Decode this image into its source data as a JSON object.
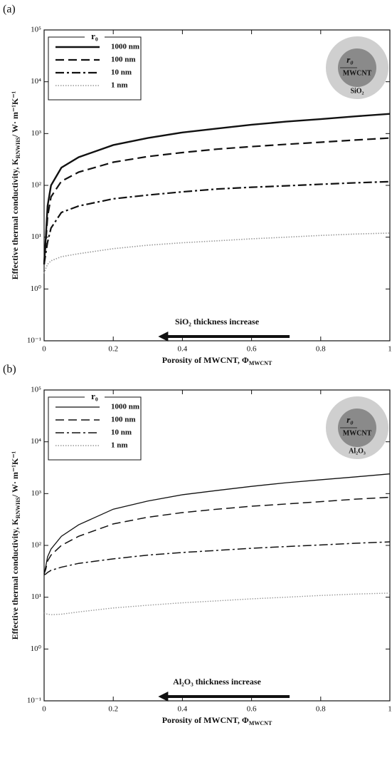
{
  "chart_data": [
    {
      "type": "line",
      "panel_label": "(a)",
      "log_y": true,
      "y_label": {
        "text": "Effective thermal conductivity, K",
        "sub": "RNWHS",
        "suffix": "/ W· m⁻¹K⁻¹"
      },
      "x_label": {
        "text": "Porosity of MWCNT, Φ",
        "sub": "MWCNT"
      },
      "annotation": "SiO₂ thickness increase",
      "inset": {
        "radius": "r₀",
        "core": "MWCNT",
        "shell": "SiO₂"
      },
      "legend_title": "r₀",
      "legend": "upper left",
      "x": [
        0,
        0.005,
        0.01,
        0.02,
        0.05,
        0.1,
        0.2,
        0.3,
        0.4,
        0.5,
        0.6,
        0.7,
        0.8,
        0.9,
        1.0
      ],
      "series": [
        {
          "name": "1000 nm",
          "color": "#111111",
          "dash": "solid",
          "width": 2.4,
          "values": [
            3,
            10,
            40,
            100,
            220,
            350,
            600,
            820,
            1050,
            1250,
            1480,
            1700,
            1900,
            2150,
            2400
          ]
        },
        {
          "name": "100 nm",
          "color": "#111111",
          "dash": "dashed",
          "width": 2.2,
          "values": [
            3,
            8,
            25,
            60,
            120,
            180,
            280,
            360,
            430,
            500,
            560,
            620,
            680,
            750,
            820
          ]
        },
        {
          "name": "10 nm",
          "color": "#111111",
          "dash": "dashdot",
          "width": 2.2,
          "values": [
            3,
            5,
            8,
            15,
            30,
            40,
            55,
            65,
            75,
            85,
            92,
            98,
            105,
            112,
            118
          ]
        },
        {
          "name": "1 nm",
          "color": "#999999",
          "dash": "dotted",
          "width": 1.6,
          "values": [
            2,
            2.5,
            3,
            3.5,
            4.2,
            4.8,
            6,
            7,
            7.8,
            8.5,
            9.3,
            10,
            10.8,
            11.5,
            12
          ]
        }
      ],
      "xlim": [
        0,
        1
      ],
      "xticks": [
        0,
        0.2,
        0.4,
        0.6,
        0.8,
        1
      ],
      "ylim": [
        0.1,
        100000
      ],
      "yticks": [
        {
          "value": 0.1,
          "label": "10⁻¹"
        },
        {
          "value": 1,
          "label": "10⁰"
        },
        {
          "value": 10,
          "label": "10¹"
        },
        {
          "value": 100,
          "label": "10²"
        },
        {
          "value": 1000,
          "label": "10³"
        },
        {
          "value": 10000,
          "label": "10⁴"
        },
        {
          "value": 100000,
          "label": "10⁵"
        }
      ]
    },
    {
      "type": "line",
      "panel_label": "(b)",
      "log_y": true,
      "y_label": {
        "text": "Effective thermal conductivity, K",
        "sub": "RNWHS",
        "suffix": "/ W· m⁻¹K⁻¹"
      },
      "x_label": {
        "text": "Porosity of MWCNT, Φ",
        "sub": "MWCNT"
      },
      "annotation": "Al₂O₃ thickness increase",
      "inset": {
        "radius": "r₀",
        "core": "MWCNT",
        "shell": "Al₂O₃"
      },
      "legend_title": "r₀",
      "legend": "upper left",
      "x": [
        0,
        0.005,
        0.01,
        0.02,
        0.05,
        0.1,
        0.2,
        0.3,
        0.4,
        0.5,
        0.6,
        0.7,
        0.8,
        0.9,
        1.0
      ],
      "series": [
        {
          "name": "1000 nm",
          "color": "#111111",
          "dash": "solid",
          "width": 1.3,
          "values": [
            28,
            40,
            60,
            85,
            150,
            250,
            500,
            720,
            950,
            1150,
            1380,
            1620,
            1850,
            2100,
            2400
          ]
        },
        {
          "name": "100 nm",
          "color": "#111111",
          "dash": "dashed",
          "width": 1.5,
          "values": [
            28,
            35,
            50,
            65,
            100,
            150,
            260,
            350,
            430,
            500,
            570,
            630,
            700,
            780,
            850
          ]
        },
        {
          "name": "10 nm",
          "color": "#111111",
          "dash": "dashdot",
          "width": 1.5,
          "values": [
            27,
            28,
            30,
            33,
            38,
            45,
            55,
            65,
            73,
            80,
            88,
            95,
            102,
            110,
            117
          ]
        },
        {
          "name": "1 nm",
          "color": "#999999",
          "dash": "dotted",
          "width": 1.4,
          "values": [
            5,
            4.8,
            4.7,
            4.6,
            4.7,
            5.2,
            6.2,
            7,
            7.8,
            8.5,
            9.3,
            10,
            10.8,
            11.5,
            12
          ]
        }
      ],
      "xlim": [
        0,
        1
      ],
      "xticks": [
        0,
        0.2,
        0.4,
        0.6,
        0.8,
        1
      ],
      "ylim": [
        0.1,
        100000
      ],
      "yticks": [
        {
          "value": 0.1,
          "label": "10⁻¹"
        },
        {
          "value": 1,
          "label": "10⁰"
        },
        {
          "value": 10,
          "label": "10¹"
        },
        {
          "value": 100,
          "label": "10²"
        },
        {
          "value": 1000,
          "label": "10³"
        },
        {
          "value": 10000,
          "label": "10⁴"
        },
        {
          "value": 100000,
          "label": "10⁵"
        }
      ]
    }
  ]
}
